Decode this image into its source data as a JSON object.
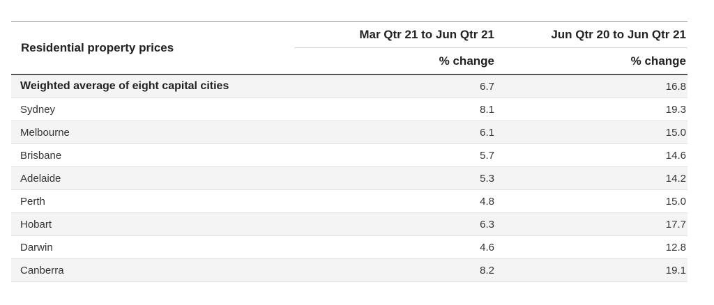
{
  "table": {
    "title": "Residential property prices",
    "col1_period": "Mar Qtr 21 to Jun Qtr 21",
    "col2_period": "Jun Qtr 20 to Jun Qtr 21",
    "col1_unit": "% change",
    "col2_unit": "% change",
    "rows": [
      {
        "name": "Weighted average of eight capital cities",
        "q1": "6.7",
        "q2": "16.8"
      },
      {
        "name": "Sydney",
        "q1": "8.1",
        "q2": "19.3"
      },
      {
        "name": "Melbourne",
        "q1": "6.1",
        "q2": "15.0"
      },
      {
        "name": "Brisbane",
        "q1": "5.7",
        "q2": "14.6"
      },
      {
        "name": "Adelaide",
        "q1": "5.3",
        "q2": "14.2"
      },
      {
        "name": "Perth",
        "q1": "4.8",
        "q2": "15.0"
      },
      {
        "name": "Hobart",
        "q1": "6.3",
        "q2": "17.7"
      },
      {
        "name": "Darwin",
        "q1": "4.6",
        "q2": "12.8"
      },
      {
        "name": "Canberra",
        "q1": "8.2",
        "q2": "19.1"
      }
    ]
  }
}
